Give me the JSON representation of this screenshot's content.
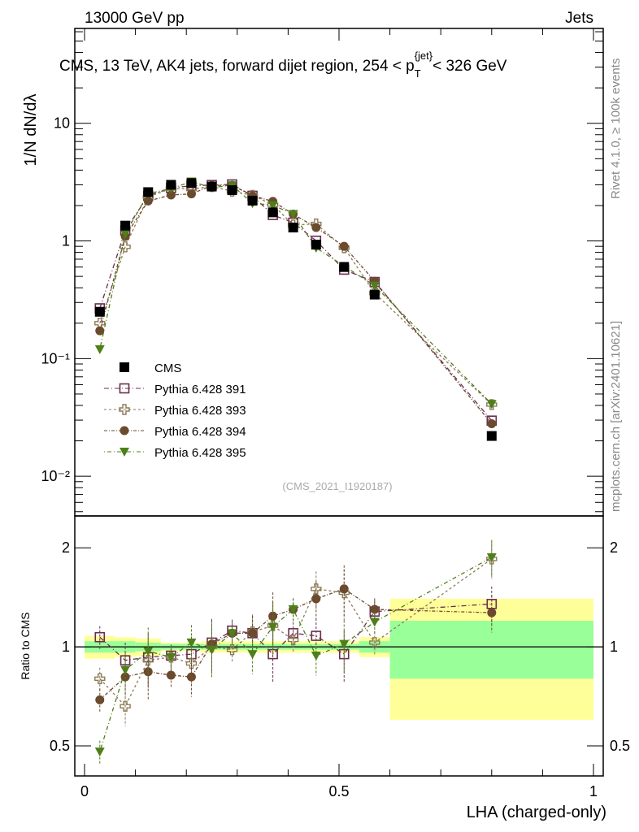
{
  "chart_data": {
    "type": "scatter",
    "header_left": "13000 GeV pp",
    "header_right": "Jets",
    "title": "CMS, 13 TeV, AK4 jets, forward dijet region, 254 < p",
    "title_sub": "T",
    "title_sup": "{jet}",
    "title_end": "< 326 GeV",
    "side_top": "Rivet 4.1.0, ≥ 100k events",
    "side_bottom": "mcplots.cern.ch [arXiv:2401.10621]",
    "analysis": "(CMS_2021_I1920187)",
    "ylabel": "1/N dN/dλ",
    "ratio_ylabel": "Ratio to CMS",
    "xlabel": "LHA (charged-only)",
    "xlim": [
      0,
      1
    ],
    "ylim": [
      0.0046,
      64
    ],
    "ratio_ylim": [
      0.405,
      2.5
    ],
    "yticks": [
      {
        "v": 10,
        "l": "10"
      },
      {
        "v": 1,
        "l": "1"
      },
      {
        "v": 0.1,
        "l": "10⁻¹"
      },
      {
        "v": 0.01,
        "l": "10⁻²"
      }
    ],
    "ratio_yticks": [
      {
        "v": 2,
        "l": "2"
      },
      {
        "v": 1,
        "l": "1"
      },
      {
        "v": 0.5,
        "l": "0.5"
      }
    ],
    "xticks": [
      {
        "v": 0,
        "l": "0"
      },
      {
        "v": 0.5,
        "l": "0.5"
      },
      {
        "v": 1,
        "l": "1"
      }
    ],
    "bin_edges": [
      0,
      0.06,
      0.1,
      0.15,
      0.19,
      0.23,
      0.27,
      0.31,
      0.35,
      0.39,
      0.43,
      0.48,
      0.54,
      0.6,
      1.0
    ],
    "x": [
      0.03,
      0.08,
      0.125,
      0.17,
      0.21,
      0.25,
      0.29,
      0.33,
      0.37,
      0.41,
      0.455,
      0.51,
      0.57,
      0.8
    ],
    "data": {
      "name": "CMS",
      "values": [
        0.25,
        1.35,
        2.6,
        3.0,
        3.1,
        2.9,
        2.7,
        2.2,
        1.75,
        1.3,
        0.93,
        0.6,
        0.35,
        0.022
      ],
      "band_total": [
        0.08,
        0.07,
        0.06,
        0.03,
        0.03,
        0.04,
        0.04,
        0.04,
        0.04,
        0.04,
        0.04,
        0.04,
        0.07,
        0.4
      ],
      "band_stat": [
        0.04,
        0.04,
        0.03,
        0.02,
        0.02,
        0.02,
        0.02,
        0.02,
        0.02,
        0.02,
        0.02,
        0.02,
        0.04,
        0.2
      ]
    },
    "series": [
      {
        "name": "Pythia 6.428 391",
        "color": "#6b2d4e",
        "marker": "open-square",
        "ratio": [
          1.07,
          0.91,
          0.93,
          0.94,
          0.95,
          1.03,
          1.12,
          1.1,
          0.95,
          1.1,
          1.08,
          0.95,
          1.28,
          1.35
        ]
      },
      {
        "name": "Pythia 6.428 393",
        "color": "#8c7a55",
        "marker": "open-cross",
        "ratio": [
          0.8,
          0.66,
          0.91,
          0.93,
          0.89,
          1.0,
          0.98,
          1.11,
          1.16,
          1.05,
          1.5,
          1.46,
          1.03,
          1.85
        ]
      },
      {
        "name": "Pythia 6.428 394",
        "color": "#6b4a2e",
        "marker": "circle",
        "ratio": [
          0.69,
          0.81,
          0.84,
          0.82,
          0.81,
          1.02,
          1.1,
          1.1,
          1.24,
          1.3,
          1.4,
          1.5,
          1.3,
          1.27
        ]
      },
      {
        "name": "Pythia 6.428 395",
        "color": "#4e7f1a",
        "marker": "triangle-down",
        "ratio": [
          0.48,
          0.85,
          0.97,
          0.93,
          1.03,
          0.98,
          1.1,
          0.95,
          1.15,
          1.3,
          0.94,
          1.02,
          1.19,
          1.87
        ]
      }
    ],
    "colors": {
      "yellow": "#ffff99",
      "green": "#99ff99"
    }
  }
}
